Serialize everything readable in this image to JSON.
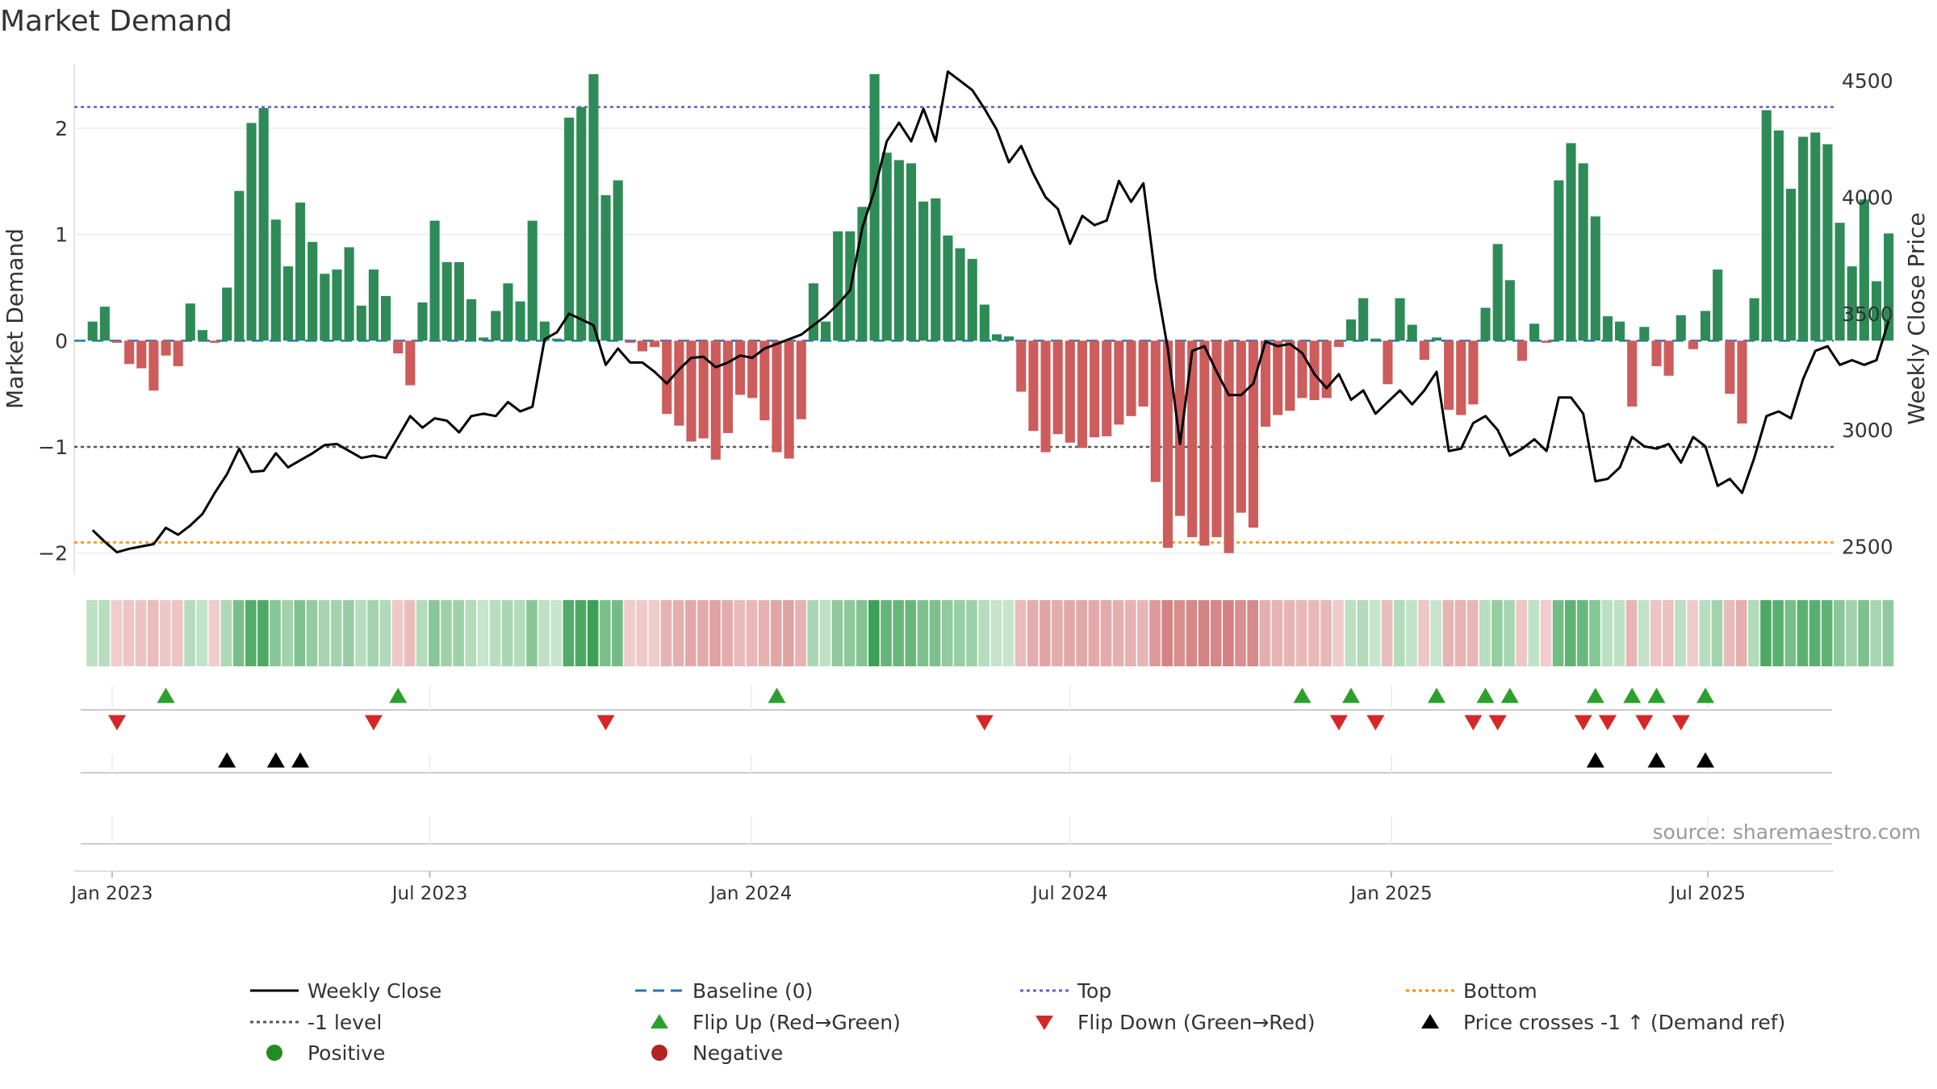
{
  "chart_data": {
    "type": "bar",
    "title": "Market Demand",
    "ylabel": "Market Demand",
    "y2label": "Weekly Close Price",
    "ylim": [
      -2.2,
      2.6
    ],
    "y2lim": [
      2380,
      4570
    ],
    "yticks": [
      -2,
      -1,
      0,
      1,
      2
    ],
    "yticklabels": [
      "−2",
      "−1",
      "0",
      "1",
      "2"
    ],
    "y2ticks": [
      2500,
      3000,
      3500,
      4000,
      4500
    ],
    "y2ticklabels": [
      "2500",
      "3000",
      "3500",
      "4000",
      "4500"
    ],
    "x_range": [
      -1.5,
      142.5
    ],
    "xticks": [
      {
        "label": "Jan 2023",
        "pos": 1.6
      },
      {
        "label": "Jul 2023",
        "pos": 27.6
      },
      {
        "label": "Jan 2024",
        "pos": 53.9
      },
      {
        "label": "Jul 2024",
        "pos": 80.0
      },
      {
        "label": "Jan 2025",
        "pos": 106.3
      },
      {
        "label": "Jul 2025",
        "pos": 132.2
      }
    ],
    "levels": {
      "top": 2.2,
      "minus_one": -1.0,
      "bottom": -1.9,
      "baseline": 0
    },
    "colors": {
      "positive": "#2e8b57",
      "negative": "#cd5c5c",
      "price": "#000000",
      "baseline": "#1f77b4",
      "top": "#6a5acd",
      "minus_one": "#555555",
      "bottom": "#ff8c00",
      "flip_up": "#2ca02c",
      "flip_down": "#d62728",
      "cross": "#000000",
      "legend_positive": "#228b22",
      "legend_negative": "#b22222"
    },
    "demand": [
      0.18,
      0.32,
      -0.02,
      -0.22,
      -0.26,
      -0.47,
      -0.14,
      -0.24,
      0.35,
      0.1,
      -0.02,
      0.5,
      1.41,
      2.05,
      2.19,
      1.14,
      0.7,
      1.3,
      0.93,
      0.63,
      0.67,
      0.88,
      0.33,
      0.67,
      0.42,
      -0.12,
      -0.42,
      0.36,
      1.13,
      0.74,
      0.74,
      0.39,
      0.03,
      0.28,
      0.54,
      0.37,
      1.13,
      0.18,
      0.02,
      2.1,
      2.2,
      2.51,
      1.37,
      1.51,
      -0.02,
      -0.1,
      -0.06,
      -0.69,
      -0.8,
      -0.95,
      -0.92,
      -1.12,
      -0.87,
      -0.51,
      -0.54,
      -0.75,
      -1.05,
      -1.11,
      -0.74,
      0.54,
      0.18,
      1.03,
      1.03,
      1.26,
      2.51,
      1.77,
      1.7,
      1.67,
      1.31,
      1.34,
      0.99,
      0.87,
      0.77,
      0.34,
      0.06,
      0.04,
      -0.48,
      -0.85,
      -1.05,
      -0.88,
      -0.96,
      -1.01,
      -0.91,
      -0.9,
      -0.79,
      -0.71,
      -0.62,
      -1.33,
      -1.95,
      -1.65,
      -1.85,
      -1.93,
      -1.85,
      -2.0,
      -1.62,
      -1.76,
      -0.81,
      -0.7,
      -0.66,
      -0.54,
      -0.56,
      -0.54,
      -0.06,
      0.2,
      0.4,
      0.02,
      -0.41,
      0.4,
      0.15,
      -0.18,
      0.03,
      -0.65,
      -0.7,
      -0.6,
      0.31,
      0.91,
      0.57,
      -0.19,
      0.16,
      -0.02,
      1.51,
      1.86,
      1.67,
      1.17,
      0.23,
      0.18,
      -0.62,
      0.13,
      -0.24,
      -0.33,
      0.24,
      -0.08,
      0.28,
      0.67,
      -0.5,
      -0.78,
      0.4,
      2.17,
      1.98,
      1.43,
      1.92,
      1.96,
      1.85,
      1.11,
      0.7,
      1.33,
      0.56,
      1.01
    ],
    "price": [
      2570,
      2520,
      2475,
      2490,
      2500,
      2510,
      2580,
      2550,
      2590,
      2640,
      2730,
      2810,
      2920,
      2820,
      2825,
      2900,
      2840,
      2870,
      2900,
      2935,
      2940,
      2910,
      2880,
      2890,
      2880,
      2970,
      3060,
      3010,
      3050,
      3040,
      2990,
      3060,
      3070,
      3060,
      3120,
      3080,
      3100,
      3390,
      3420,
      3500,
      3475,
      3450,
      3280,
      3350,
      3290,
      3290,
      3250,
      3200,
      3260,
      3310,
      3315,
      3270,
      3290,
      3320,
      3310,
      3350,
      3370,
      3390,
      3410,
      3450,
      3490,
      3540,
      3600,
      3870,
      4030,
      4240,
      4320,
      4240,
      4380,
      4240,
      4540,
      4500,
      4460,
      4380,
      4290,
      4150,
      4220,
      4100,
      4000,
      3950,
      3800,
      3920,
      3880,
      3900,
      4070,
      3980,
      4060,
      3650,
      3350,
      2940,
      3340,
      3360,
      3250,
      3150,
      3150,
      3200,
      3380,
      3360,
      3370,
      3330,
      3240,
      3180,
      3240,
      3130,
      3170,
      3070,
      3120,
      3170,
      3110,
      3170,
      3250,
      2910,
      2920,
      3030,
      3060,
      3000,
      2890,
      2920,
      2960,
      2910,
      3140,
      3140,
      3070,
      2780,
      2790,
      2840,
      2970,
      2930,
      2920,
      2940,
      2860,
      2970,
      2930,
      2760,
      2790,
      2730,
      2880,
      3060,
      3080,
      3050,
      3220,
      3340,
      3360,
      3280,
      3300,
      3280,
      3300,
      3470
    ],
    "flip_up": [
      6,
      25,
      56,
      99,
      103,
      110,
      114,
      116,
      123,
      126,
      128,
      132
    ],
    "flip_down": [
      2,
      23,
      42,
      73,
      102,
      105,
      113,
      115,
      122,
      124,
      127,
      130
    ],
    "price_cross": [
      11,
      15,
      17,
      123,
      128,
      132
    ],
    "source": "source: sharemaestro.com",
    "legend": [
      {
        "key": "weekly_close",
        "label": "Weekly Close"
      },
      {
        "key": "baseline",
        "label": "Baseline (0)"
      },
      {
        "key": "top",
        "label": "Top"
      },
      {
        "key": "bottom",
        "label": "Bottom"
      },
      {
        "key": "minus_one",
        "label": "-1 level"
      },
      {
        "key": "flip_up",
        "label": "Flip Up (Red→Green)"
      },
      {
        "key": "flip_down",
        "label": "Flip Down (Green→Red)"
      },
      {
        "key": "price_cross",
        "label": "Price crosses -1 ↑ (Demand ref)"
      },
      {
        "key": "positive",
        "label": "Positive"
      },
      {
        "key": "negative",
        "label": "Negative"
      }
    ]
  }
}
